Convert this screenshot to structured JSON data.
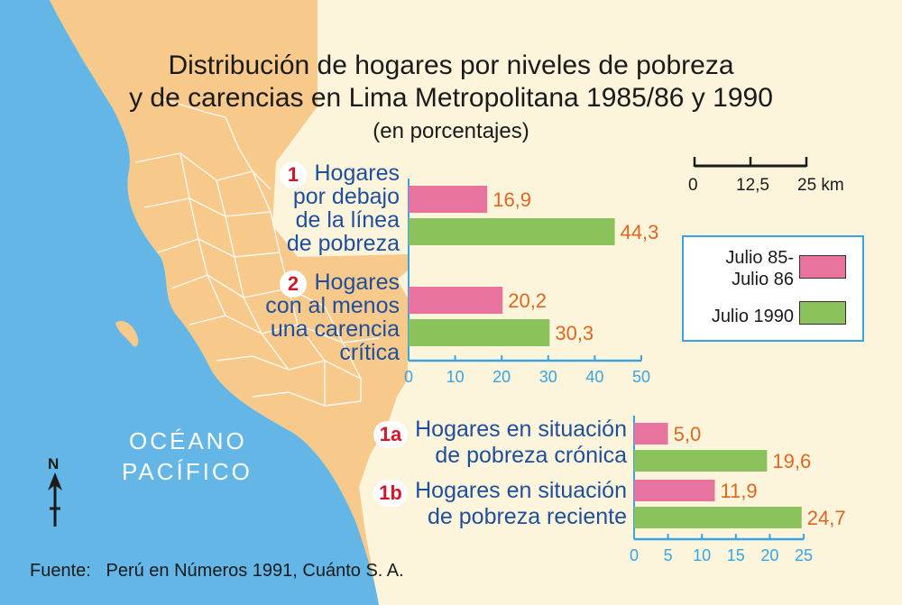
{
  "title_line1": "Distribución de hogares por niveles de pobreza",
  "title_line2": "y de carencias en Lima Metropolitana 1985/86 y 1990",
  "subtitle": "(en porcentajes)",
  "colors": {
    "pink": "#e8739f",
    "green": "#8cc25c",
    "value_text": "#e0661e",
    "axis": "#3aa3e0",
    "ocean": "#63b6e6",
    "land": "#f7c98a",
    "label_text": "#1f4f9c",
    "badge_text": "#d0182b"
  },
  "labels": {
    "cat1": {
      "badge": "1",
      "lines": [
        "Hogares",
        "por debajo",
        "de la línea",
        "de pobreza"
      ]
    },
    "cat2": {
      "badge": "2",
      "lines": [
        "Hogares",
        "con al menos",
        "una carencia",
        "crítica"
      ]
    },
    "cat1a": {
      "badge": "1a",
      "lines": [
        "Hogares en situación",
        "de pobreza crónica"
      ]
    },
    "cat1b": {
      "badge": "1b",
      "lines": [
        "Hogares en situación",
        "de pobreza reciente"
      ]
    }
  },
  "legend": {
    "pink_lines": [
      "Julio 85-",
      "Julio 86"
    ],
    "green_label": "Julio 1990"
  },
  "scale_bar": {
    "ticks": [
      "0",
      "12,5",
      "25 km"
    ]
  },
  "map": {
    "ocean_label_lines": [
      "OCÉANO",
      "PACÍFICO"
    ],
    "north_label": "N"
  },
  "source": "Fuente:   Perú en Números 1991, Cuánto S. A.",
  "chart_data": [
    {
      "type": "bar",
      "orientation": "horizontal",
      "categories": [
        "1",
        "2"
      ],
      "series": [
        {
          "name": "Julio 85-Julio 86",
          "values": [
            16.9,
            20.2
          ],
          "labels": [
            "16,9",
            "20,2"
          ]
        },
        {
          "name": "Julio 1990",
          "values": [
            44.3,
            30.3
          ],
          "labels": [
            "44,3",
            "30,3"
          ]
        }
      ],
      "xlim": [
        0,
        50
      ],
      "xticks": [
        0,
        10,
        20,
        30,
        40,
        50
      ]
    },
    {
      "type": "bar",
      "orientation": "horizontal",
      "categories": [
        "1a",
        "1b"
      ],
      "series": [
        {
          "name": "Julio 85-Julio 86",
          "values": [
            5.0,
            11.9
          ],
          "labels": [
            "5,0",
            "11,9"
          ]
        },
        {
          "name": "Julio 1990",
          "values": [
            19.6,
            24.7
          ],
          "labels": [
            "19,6",
            "24,7"
          ]
        }
      ],
      "xlim": [
        0,
        25
      ],
      "xticks": [
        0,
        5,
        10,
        15,
        20,
        25
      ]
    }
  ]
}
